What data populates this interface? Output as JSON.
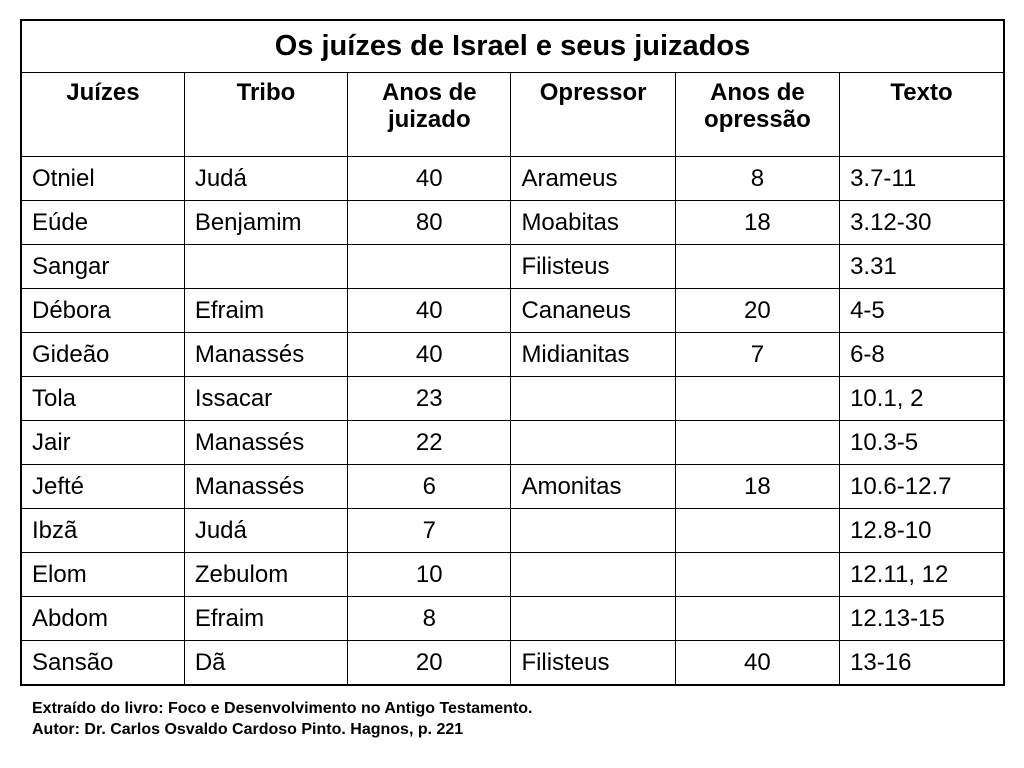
{
  "table": {
    "title": "Os juízes de Israel e seus juizados",
    "headers": [
      "Juízes",
      "Tribo",
      "Anos de juizado",
      "Opressor",
      "Anos de opressão",
      "Texto"
    ],
    "rows": [
      [
        "Otniel",
        "Judá",
        "40",
        "Arameus",
        "8",
        "3.7-11"
      ],
      [
        "Eúde",
        "Benjamim",
        "80",
        "Moabitas",
        "18",
        "3.12-30"
      ],
      [
        "Sangar",
        "",
        "",
        "Filisteus",
        "",
        "3.31"
      ],
      [
        "Débora",
        "Efraim",
        "40",
        "Cananeus",
        "20",
        "4-5"
      ],
      [
        "Gideão",
        "Manassés",
        "40",
        "Midianitas",
        "7",
        "6-8"
      ],
      [
        "Tola",
        "Issacar",
        "23",
        "",
        "",
        "10.1, 2"
      ],
      [
        "Jair",
        "Manassés",
        "22",
        "",
        "",
        "10.3-5"
      ],
      [
        "Jefté",
        "Manassés",
        "6",
        "Amonitas",
        "18",
        "10.6-12.7"
      ],
      [
        "Ibzã",
        "Judá",
        "7",
        "",
        "",
        "12.8-10"
      ],
      [
        "Elom",
        "Zebulom",
        "10",
        "",
        "",
        "12.11, 12"
      ],
      [
        "Abdom",
        "Efraim",
        "8",
        "",
        "",
        "12.13-15"
      ],
      [
        "Sansão",
        "Dã",
        "20",
        "Filisteus",
        "40",
        "13-16"
      ]
    ]
  },
  "footnote": {
    "line1": "Extraído do livro: Foco e Desenvolvimento no Antigo Testamento.",
    "line2": "Autor: Dr. Carlos Osvaldo Cardoso Pinto. Hagnos, p. 221"
  }
}
